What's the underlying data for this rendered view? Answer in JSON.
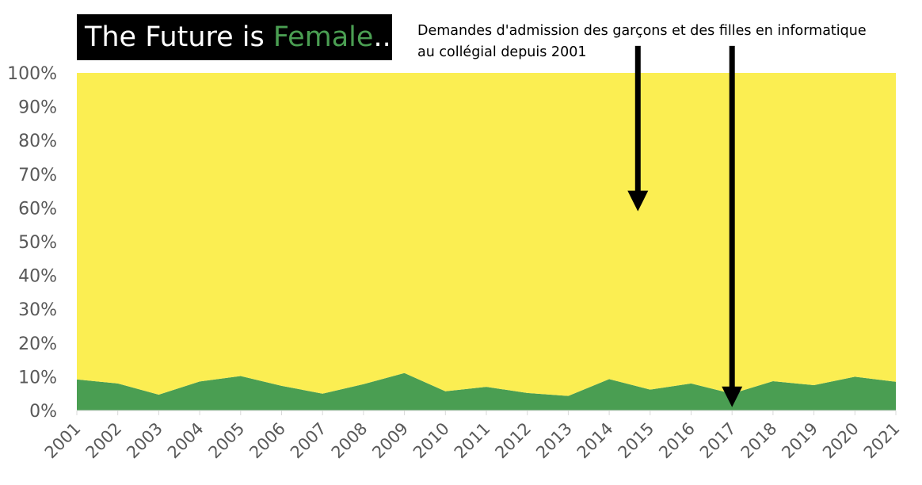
{
  "title": {
    "prefix": "The Future is ",
    "accent": "Female",
    "suffix": "...?",
    "accent_color": "#4a9e52",
    "background_color": "#000000"
  },
  "annotation": {
    "line1": "Demandes d'admission des garçons et des filles en informatique",
    "line2": "au collégial depuis 2001"
  },
  "chart_data": {
    "type": "area",
    "stacked": "percent",
    "x": [
      "2001",
      "2002",
      "2003",
      "2004",
      "2005",
      "2006",
      "2007",
      "2008",
      "2009",
      "2010",
      "2011",
      "2012",
      "2013",
      "2014",
      "2015",
      "2016",
      "2017",
      "2018",
      "2019",
      "2020",
      "2021"
    ],
    "series": [
      {
        "color": "#4a9e52",
        "values": [
          9.2,
          8.0,
          4.7,
          8.6,
          10.2,
          7.3,
          5.0,
          7.8,
          11.1,
          5.7,
          7.0,
          5.2,
          4.3,
          9.3,
          6.2,
          8.0,
          5.0,
          8.7,
          7.5,
          10.0,
          8.5
        ]
      },
      {
        "color": "#fbee52",
        "values": [
          90.8,
          92.0,
          95.3,
          91.4,
          89.8,
          92.7,
          95.0,
          92.2,
          88.9,
          94.3,
          93.0,
          94.8,
          95.7,
          90.7,
          93.8,
          92.0,
          95.0,
          91.3,
          92.5,
          90.0,
          91.5
        ]
      }
    ],
    "y_ticks": [
      "0%",
      "10%",
      "20%",
      "30%",
      "40%",
      "50%",
      "60%",
      "70%",
      "80%",
      "90%",
      "100%"
    ],
    "ylim": [
      0,
      100
    ],
    "grid": false,
    "legend": "none",
    "arrows": [
      {
        "x": "2014.7",
        "y_from": 108,
        "y_to": 59
      },
      {
        "x": "2017",
        "y_from": 108,
        "y_to": 1
      }
    ]
  }
}
